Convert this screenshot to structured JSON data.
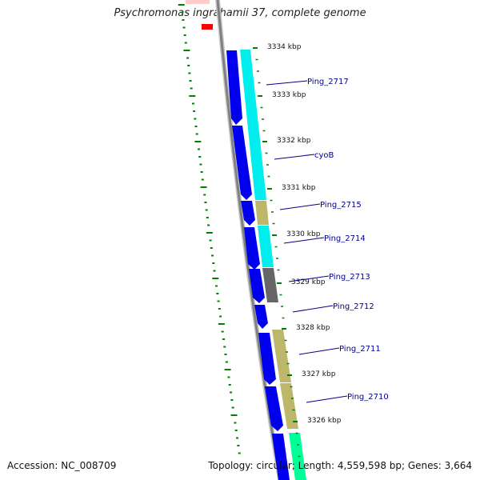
{
  "title": "Psychromonas ingrahamii 37, complete genome",
  "footer": {
    "accession": "Accession: NC_008709",
    "summary": "Topology: circular; Length: 4,559,598 bp; Genes: 3,664"
  },
  "ticks": [
    "3334 kbp",
    "3333 kbp",
    "3332 kbp",
    "3331 kbp",
    "3330 kbp",
    "3329 kbp",
    "3328 kbp",
    "3327 kbp",
    "3326 kbp"
  ],
  "genes": [
    "Ping_2717",
    "cyoB",
    "Ping_2715",
    "Ping_2714",
    "Ping_2713",
    "Ping_2712",
    "Ping_2711",
    "Ping_2710"
  ],
  "colors": {
    "cds": "#0000ee",
    "cog_cyan": "#00eeee",
    "cog_khaki": "#bdb76b",
    "cog_gray": "#666666",
    "cog_green": "#00ff99",
    "backbone": "#808080",
    "gc_skew": "#008000",
    "label": "#00008b",
    "partial_red": "#ff0000"
  }
}
